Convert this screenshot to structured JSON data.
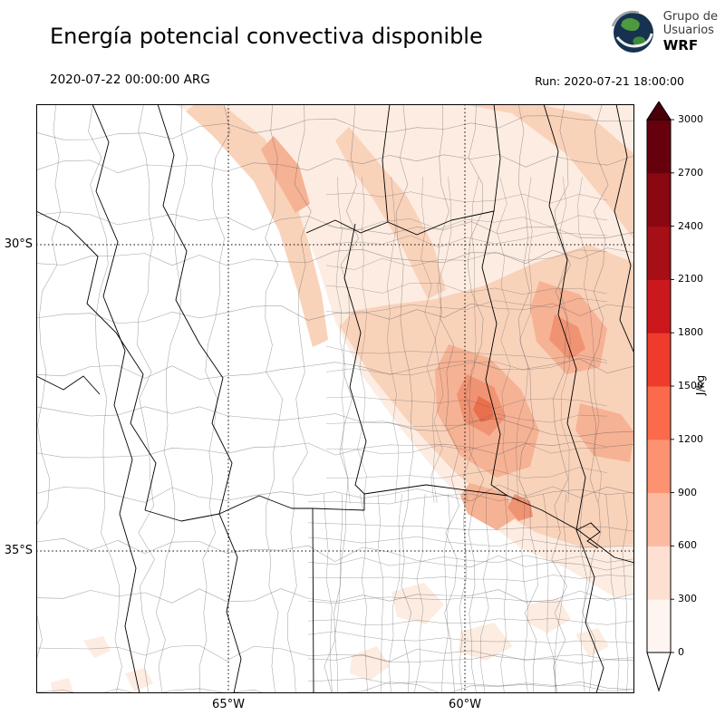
{
  "header": {
    "title": "Energía potencial convectiva disponible",
    "valid_time": "2020-07-22 00:00:00 ARG",
    "run": "Run: 2020-07-21 18:00:00"
  },
  "logo": {
    "line1": "Grupo de",
    "line2": "Usuarios",
    "line3": "WRF"
  },
  "axes": {
    "lat": [
      "30°S",
      "35°S"
    ],
    "lon": [
      "65°W",
      "60°W"
    ]
  },
  "colorbar": {
    "unit": "J/kg",
    "ticks": [
      "0",
      "300",
      "600",
      "900",
      "1200",
      "1500",
      "1800",
      "2100",
      "2400",
      "2700",
      "3000"
    ],
    "segment_colors": [
      "#fff5f0",
      "#fee0d2",
      "#fcbba1",
      "#fc9272",
      "#fb6a4a",
      "#ef3b2c",
      "#cb181d",
      "#a50f15",
      "#8a0812",
      "#67000d"
    ],
    "under_color": "#ffffff",
    "over_color": "#4a0009"
  },
  "map_field": {
    "quantity": "CAPE",
    "levels_jkg": [
      150,
      300,
      600,
      900,
      1200
    ],
    "level_colors": [
      "#fdece1",
      "#f9d2ba",
      "#f6b294",
      "#f09372",
      "#ea6f4d"
    ]
  }
}
